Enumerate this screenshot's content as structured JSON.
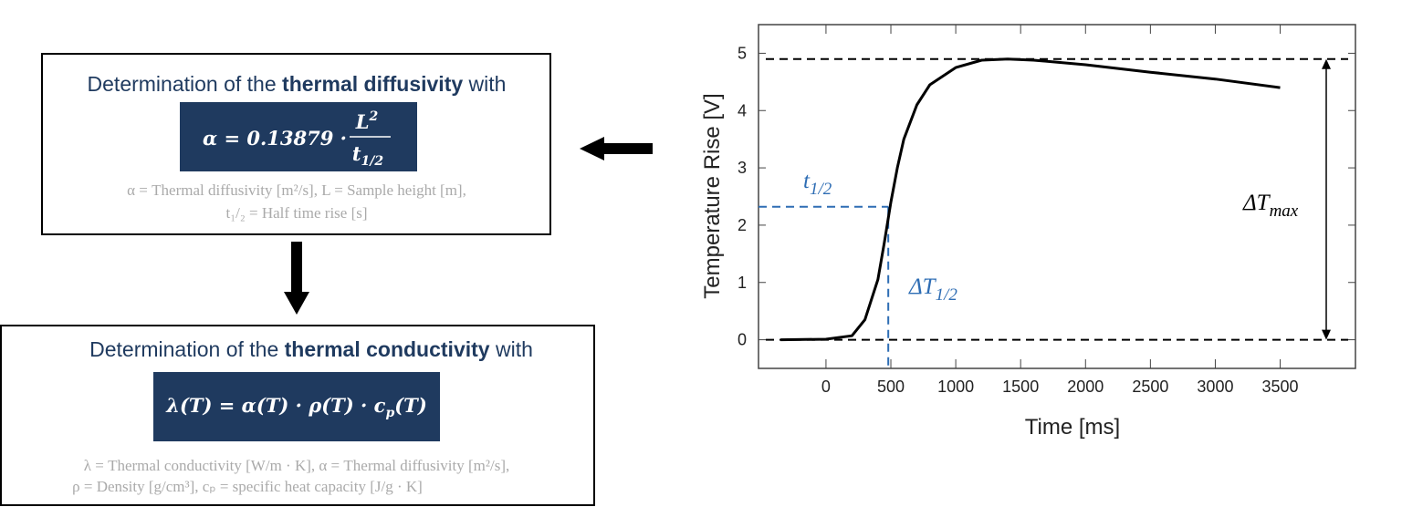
{
  "diffusivity": {
    "title_pre": "Determination of the ",
    "title_bold": "thermal diffusivity",
    "title_post": " with",
    "formula_lhs": "α = 0.13879 ·",
    "formula_num": "L",
    "formula_num_sup": "2",
    "formula_den": "t",
    "formula_den_sub": "1/2",
    "legend": [
      "α = Thermal diffusivity [m²/s],  L = Sample height [m],",
      "t₁/₂ = Half time rise [s]"
    ]
  },
  "conductivity": {
    "title_pre": "Determination of the ",
    "title_bold": "thermal conductivity",
    "title_post": " with",
    "formula_main": "λ(T) = α(T) · ρ(T) · c",
    "formula_sub": "p",
    "formula_tail": "(T)",
    "legend": [
      "λ = Thermal conductivity [W/m · K], α = Thermal diffusivity [m²/s],",
      "ρ = Density [g/cm³], cₚ = specific heat capacity [J/g · K]"
    ]
  },
  "chart_data": {
    "type": "line",
    "x_label": "Time [ms]",
    "y_label": "Temperature Rise [V]",
    "x": [
      -350,
      0,
      200,
      300,
      400,
      450,
      500,
      550,
      600,
      700,
      800,
      1000,
      1200,
      1400,
      1600,
      2000,
      2500,
      3000,
      3500
    ],
    "values": [
      0,
      0.01,
      0.07,
      0.35,
      1.05,
      1.7,
      2.4,
      3.0,
      3.5,
      4.1,
      4.45,
      4.75,
      4.88,
      4.9,
      4.88,
      4.8,
      4.67,
      4.55,
      4.4
    ],
    "color": "#000000",
    "xlim": [
      -520,
      4080
    ],
    "ylim": [
      -0.5,
      5.5
    ],
    "xticks": [
      0,
      500,
      1000,
      1500,
      2000,
      2500,
      3000,
      3500
    ],
    "yticks": [
      0,
      1,
      2,
      3,
      4,
      5
    ],
    "hlines": [
      4.9,
      0
    ],
    "half_time": {
      "x": 480,
      "y": 2.32,
      "color": "#2e6db4"
    },
    "annotations": {
      "half_time": {
        "base": "t",
        "sub": "1/2"
      },
      "half_rise": {
        "base": "ΔT",
        "sub": "1/2"
      },
      "max_rise": {
        "base": "ΔT",
        "sub": "max"
      }
    }
  }
}
